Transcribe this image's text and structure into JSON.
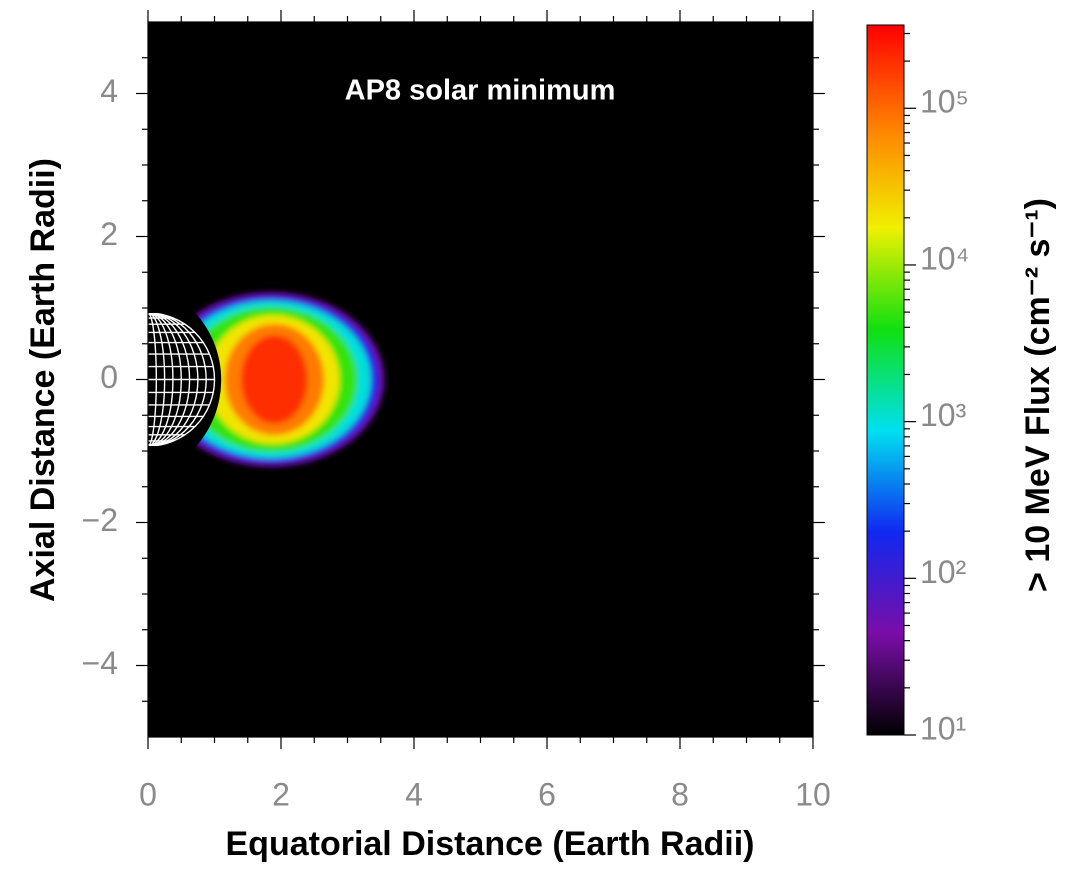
{
  "chart_data": {
    "type": "contour",
    "title": "AP8 solar minimum",
    "xlabel": "Equatorial Distance (Earth Radii)",
    "ylabel": "Axial Distance (Earth Radii)",
    "colorbar_label": "> 10 MeV Flux (cm⁻² s⁻¹)",
    "xlim": [
      0,
      10
    ],
    "ylim": [
      -5,
      5
    ],
    "xticks": [
      0,
      2,
      4,
      6,
      8,
      10
    ],
    "yticks": [
      {
        "value": -4,
        "label": "−4"
      },
      {
        "value": -2,
        "label": "−2"
      },
      0,
      2,
      4
    ],
    "clim": [
      10,
      340000
    ],
    "clog": true,
    "cticks": [
      {
        "value": 10,
        "label": "10¹"
      },
      {
        "value": 100,
        "label": "10²"
      },
      {
        "value": 1000,
        "label": "10³"
      },
      {
        "value": 10000,
        "label": "10⁴"
      },
      {
        "value": 100000,
        "label": "10⁵"
      }
    ],
    "colormap": [
      "#000000",
      "#7a0da8",
      "#1028f0",
      "#00e0f0",
      "#10e010",
      "#f0f000",
      "#ff8000",
      "#ff0000"
    ],
    "contours": [
      {
        "level": 50,
        "cx": 1.85,
        "cy": 0,
        "rx": 1.7,
        "ry": 1.22
      },
      {
        "level": 150,
        "cx": 1.85,
        "cy": 0,
        "rx": 1.62,
        "ry": 1.17
      },
      {
        "level": 1000,
        "cx": 1.85,
        "cy": 0,
        "rx": 1.5,
        "ry": 1.1
      },
      {
        "level": 5000,
        "cx": 1.85,
        "cy": 0,
        "rx": 1.3,
        "ry": 1.02
      },
      {
        "level": 20000,
        "cx": 1.88,
        "cy": 0,
        "rx": 1.0,
        "ry": 0.9
      },
      {
        "level": 80000,
        "cx": 1.9,
        "cy": 0,
        "rx": 0.75,
        "ry": 0.78
      },
      {
        "level": 200000,
        "cx": 1.9,
        "cy": 0,
        "rx": 0.5,
        "ry": 0.62
      }
    ]
  }
}
